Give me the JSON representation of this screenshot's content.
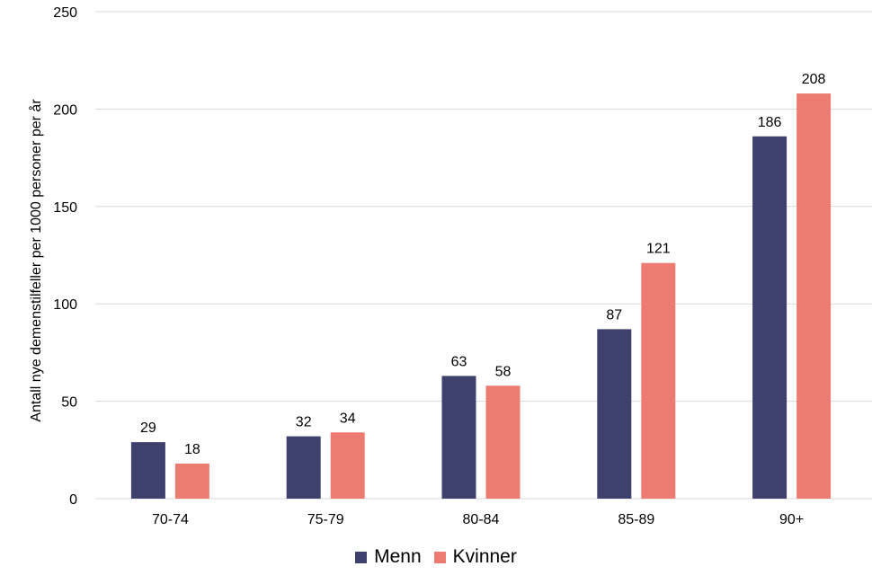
{
  "chart_data": {
    "type": "bar",
    "title": "",
    "xlabel": "",
    "ylabel": "Antall nye demenstilfeller per 1000 personer per år",
    "ylim": [
      0,
      250
    ],
    "yticks": [
      0,
      50,
      100,
      150,
      200,
      250
    ],
    "grid": true,
    "legend_position": "bottom",
    "categories": [
      "70-74",
      "75-79",
      "80-84",
      "85-89",
      "90+"
    ],
    "series": [
      {
        "name": "Menn",
        "color": "#3f416d",
        "values": [
          29,
          32,
          63,
          87,
          186
        ]
      },
      {
        "name": "Kvinner",
        "color": "#ec7b72",
        "values": [
          18,
          34,
          58,
          121,
          208
        ]
      }
    ]
  }
}
